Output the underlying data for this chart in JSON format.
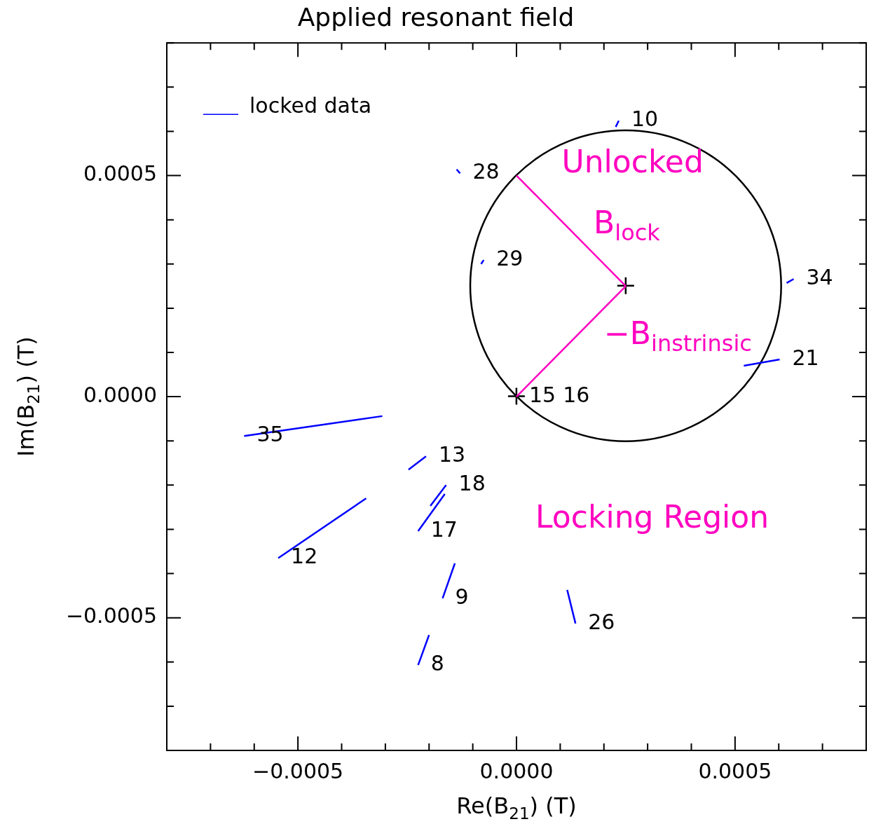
{
  "chart_data": {
    "type": "line",
    "title": "Applied resonant field",
    "xlabel": "Re(B$_{21}$) (T)",
    "ylabel": "Im(B$_{21}$) (T)",
    "xlim": [
      -0.0008,
      0.0008
    ],
    "xticks": [
      {
        "value": -0.0008,
        "label": null
      },
      {
        "value": -0.0007,
        "label": null
      },
      {
        "value": -0.0006,
        "label": null
      },
      {
        "value": -0.0005,
        "label": "−0.0005"
      },
      {
        "value": -0.0004,
        "label": null
      },
      {
        "value": -0.0003,
        "label": null
      },
      {
        "value": -0.0002,
        "label": null
      },
      {
        "value": -0.0001,
        "label": null
      },
      {
        "value": 0,
        "label": "0.0000"
      },
      {
        "value": 0.0001,
        "label": null
      },
      {
        "value": 0.0002,
        "label": null
      },
      {
        "value": 0.0003,
        "label": null
      },
      {
        "value": 0.0004,
        "label": null
      },
      {
        "value": 0.0005,
        "label": "0.0005"
      },
      {
        "value": 0.0006,
        "label": null
      },
      {
        "value": 0.0007,
        "label": null
      },
      {
        "value": 0.0008,
        "label": null
      }
    ],
    "ylim": [
      -0.0008,
      0.0008
    ],
    "yticks": [
      {
        "value": -0.0008,
        "label": null
      },
      {
        "value": -0.0007,
        "label": null
      },
      {
        "value": -0.0006,
        "label": null
      },
      {
        "value": -0.0005,
        "label": "−0.0005"
      },
      {
        "value": -0.0004,
        "label": null
      },
      {
        "value": -0.0003,
        "label": null
      },
      {
        "value": -0.0002,
        "label": null
      },
      {
        "value": -0.0001,
        "label": null
      },
      {
        "value": 0,
        "label": "0.0000"
      },
      {
        "value": 0.0001,
        "label": null
      },
      {
        "value": 0.0002,
        "label": null
      },
      {
        "value": 0.0003,
        "label": null
      },
      {
        "value": 0.0004,
        "label": null
      },
      {
        "value": 0.0005,
        "label": "0.0005"
      },
      {
        "value": 0.0006,
        "label": null
      },
      {
        "value": 0.0007,
        "label": null
      },
      {
        "value": 0.0008,
        "label": null
      }
    ],
    "legend": "top left",
    "series": [
      {
        "name": "locked data",
        "color": "#0000ff",
        "marker": "none",
        "x": [
          0.000227,
          0.000234,
          null,
          -0.000137,
          -0.000129,
          null,
          -8.1e-05,
          -7.5e-05,
          null,
          0.000618,
          0.000634,
          null,
          0.00052,
          0.000602,
          null,
          -0.000623,
          -0.000307,
          null,
          -0.000247,
          -0.000207,
          null,
          -0.000197,
          -0.000161,
          null,
          -0.000225,
          -0.000164,
          null,
          -0.000545,
          -0.000344,
          null,
          -0.000169,
          -0.000141,
          null,
          0.000116,
          0.000135,
          null,
          -0.000225,
          -0.0002
        ],
        "values": [
          0.00061,
          0.000624,
          null,
          0.000514,
          0.000505,
          null,
          0.0003,
          0.000309,
          null,
          0.000257,
          0.000266,
          null,
          7e-05,
          8.4e-05,
          null,
          -8.9e-05,
          -4.4e-05,
          null,
          -0.000165,
          -0.000135,
          null,
          -0.000247,
          -0.0002,
          null,
          -0.000304,
          -0.00022,
          null,
          -0.000365,
          -0.00023,
          null,
          -0.000456,
          -0.000377,
          null,
          -0.000437,
          -0.000513,
          null,
          -0.000607,
          -0.000539
        ]
      },
      {
        "name": "B$_{lock}$",
        "color": "#ff00c0",
        "marker": "none",
        "x": [
          0.00025,
          0
        ],
        "values": [
          0.00025,
          0.0005
        ]
      },
      {
        "name": "−B$_{instrinsic}$",
        "color": "#ff00c0",
        "marker": "none",
        "x": [
          0,
          0.00025
        ],
        "values": [
          0,
          0.00025
        ]
      }
    ],
    "annotations": [
      {
        "text": "10",
        "x": 0.000234,
        "y": 0.000624
      },
      {
        "text": "28",
        "x": -0.000129,
        "y": 0.000505
      },
      {
        "text": "29",
        "x": -7.5e-05,
        "y": 0.000309
      },
      {
        "text": "34",
        "x": 0.000634,
        "y": 0.000266
      },
      {
        "text": "21",
        "x": 0.000602,
        "y": 8.4e-05
      },
      {
        "text": "15",
        "x": 0,
        "y": 0
      },
      {
        "text": "16",
        "x": 0,
        "y": 0
      },
      {
        "text": "35",
        "x": -0.000623,
        "y": -8.9e-05
      },
      {
        "text": "13",
        "x": -0.000207,
        "y": -0.000135
      },
      {
        "text": "18",
        "x": -0.000161,
        "y": -0.0002
      },
      {
        "text": "17",
        "x": -0.000225,
        "y": -0.000304
      },
      {
        "text": "12",
        "x": -0.000545,
        "y": -0.000365
      },
      {
        "text": "9",
        "x": -0.000169,
        "y": -0.000456
      },
      {
        "text": "26",
        "x": 0.000135,
        "y": -0.000513
      },
      {
        "text": "8",
        "x": -0.000225,
        "y": -0.000607
      },
      "Unlocked",
      "Locking Region"
    ]
  }
}
